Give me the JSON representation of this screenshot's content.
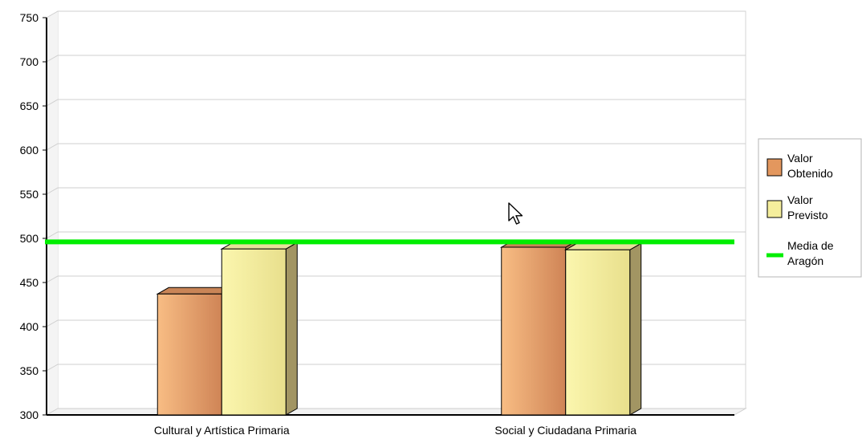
{
  "chart_data": {
    "type": "bar",
    "style": "3d-clustered",
    "title": "",
    "xlabel": "",
    "ylabel": "",
    "ylim": [
      300,
      750
    ],
    "yticks": [
      300,
      350,
      400,
      450,
      500,
      550,
      600,
      650,
      700,
      750
    ],
    "grid": true,
    "legend_position": "right",
    "categories": [
      "Cultural y Artística Primaria",
      "Social y Ciudadana Primaria"
    ],
    "series": [
      {
        "name": "Valor Obtenido",
        "values": [
          437,
          490
        ],
        "color": "#e3975e"
      },
      {
        "name": "Valor Previsto",
        "values": [
          488,
          487
        ],
        "color": "#f5ee9c"
      }
    ],
    "reference_lines": [
      {
        "name": "Media de Aragón",
        "value": 496,
        "color": "#00ee00"
      }
    ]
  },
  "legend": {
    "items": [
      {
        "lines": [
          "Valor",
          "Obtenido"
        ],
        "kind": "swatch",
        "color": "#e3975e"
      },
      {
        "lines": [
          "Valor",
          "Previsto"
        ],
        "kind": "swatch",
        "color": "#f5ee9c"
      },
      {
        "lines": [
          "Media de",
          "Aragón"
        ],
        "kind": "line",
        "color": "#00ee00"
      }
    ]
  },
  "cursor": {
    "icon": "arrow-cursor-icon"
  }
}
